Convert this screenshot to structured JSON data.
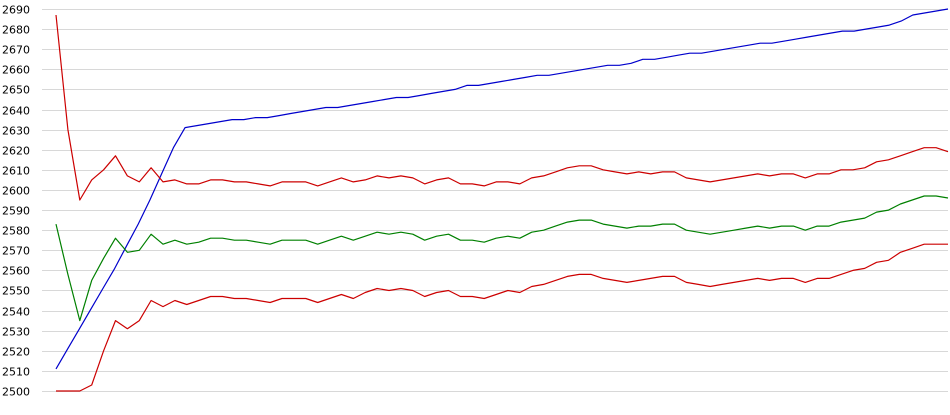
{
  "chart_data": {
    "type": "line",
    "title": "",
    "xlabel": "",
    "ylabel": "",
    "ylim": [
      2500,
      2690
    ],
    "y_ticks": [
      2500,
      2510,
      2520,
      2530,
      2540,
      2550,
      2560,
      2570,
      2580,
      2590,
      2600,
      2610,
      2620,
      2630,
      2640,
      2650,
      2660,
      2670,
      2680,
      2690
    ],
    "grid": true,
    "legend": "none",
    "series": [
      {
        "color": "#0000cc",
        "values": [
          2511,
          2521,
          2531,
          2541,
          2551,
          2561,
          2572,
          2583,
          2595,
          2608,
          2621,
          2631,
          2632,
          2633,
          2634,
          2635,
          2635,
          2636,
          2636,
          2637,
          2638,
          2639,
          2640,
          2641,
          2641,
          2642,
          2643,
          2644,
          2645,
          2646,
          2646,
          2647,
          2648,
          2649,
          2650,
          2652,
          2652,
          2653,
          2654,
          2655,
          2656,
          2657,
          2657,
          2658,
          2659,
          2660,
          2661,
          2662,
          2662,
          2663,
          2665,
          2665,
          2666,
          2667,
          2668,
          2668,
          2669,
          2670,
          2671,
          2672,
          2673,
          2673,
          2674,
          2675,
          2676,
          2677,
          2678,
          2679,
          2679,
          2680,
          2681,
          2682,
          2684,
          2687,
          2688,
          2689,
          2690
        ]
      },
      {
        "color": "#cc0000",
        "values": [
          2687,
          2630,
          2595,
          2605,
          2610,
          2617,
          2607,
          2604,
          2611,
          2604,
          2605,
          2603,
          2603,
          2605,
          2605,
          2604,
          2604,
          2603,
          2602,
          2604,
          2604,
          2604,
          2602,
          2604,
          2606,
          2604,
          2605,
          2607,
          2606,
          2607,
          2606,
          2603,
          2605,
          2606,
          2603,
          2603,
          2602,
          2604,
          2604,
          2603,
          2606,
          2607,
          2609,
          2611,
          2612,
          2612,
          2610,
          2609,
          2608,
          2609,
          2608,
          2609,
          2609,
          2606,
          2605,
          2604,
          2605,
          2606,
          2607,
          2608,
          2607,
          2608,
          2608,
          2606,
          2608,
          2608,
          2610,
          2610,
          2611,
          2614,
          2615,
          2617,
          2619,
          2621,
          2621,
          2619
        ]
      },
      {
        "color": "#008000",
        "values": [
          2583,
          2558,
          2535,
          2555,
          2566,
          2576,
          2569,
          2570,
          2578,
          2573,
          2575,
          2573,
          2574,
          2576,
          2576,
          2575,
          2575,
          2574,
          2573,
          2575,
          2575,
          2575,
          2573,
          2575,
          2577,
          2575,
          2577,
          2579,
          2578,
          2579,
          2578,
          2575,
          2577,
          2578,
          2575,
          2575,
          2574,
          2576,
          2577,
          2576,
          2579,
          2580,
          2582,
          2584,
          2585,
          2585,
          2583,
          2582,
          2581,
          2582,
          2582,
          2583,
          2583,
          2580,
          2579,
          2578,
          2579,
          2580,
          2581,
          2582,
          2581,
          2582,
          2582,
          2580,
          2582,
          2582,
          2584,
          2585,
          2586,
          2589,
          2590,
          2593,
          2595,
          2597,
          2597,
          2596
        ]
      },
      {
        "color": "#cc0000",
        "values": [
          2500,
          2500,
          2500,
          2503,
          2520,
          2535,
          2531,
          2535,
          2545,
          2542,
          2545,
          2543,
          2545,
          2547,
          2547,
          2546,
          2546,
          2545,
          2544,
          2546,
          2546,
          2546,
          2544,
          2546,
          2548,
          2546,
          2549,
          2551,
          2550,
          2551,
          2550,
          2547,
          2549,
          2550,
          2547,
          2547,
          2546,
          2548,
          2550,
          2549,
          2552,
          2553,
          2555,
          2557,
          2558,
          2558,
          2556,
          2555,
          2554,
          2555,
          2556,
          2557,
          2557,
          2554,
          2553,
          2552,
          2553,
          2554,
          2555,
          2556,
          2555,
          2556,
          2556,
          2554,
          2556,
          2556,
          2558,
          2560,
          2561,
          2564,
          2565,
          2569,
          2571,
          2573,
          2573,
          2573
        ]
      }
    ]
  }
}
